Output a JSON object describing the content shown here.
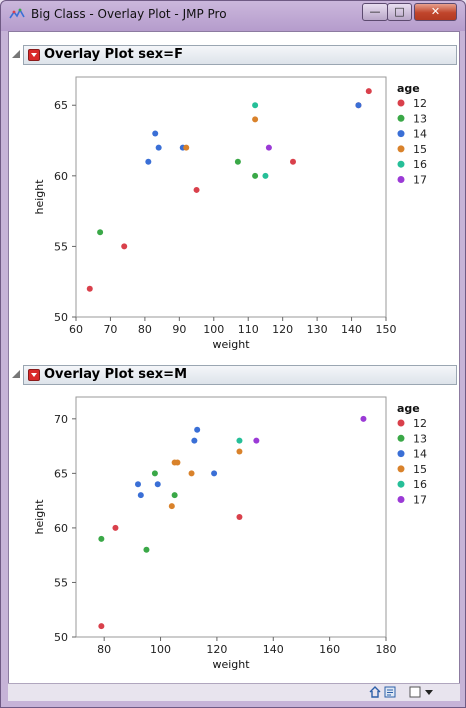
{
  "window": {
    "title": "Big Class - Overlay Plot - JMP Pro",
    "buttons": {
      "minimize": "—",
      "maximize": "□",
      "close": "✕"
    }
  },
  "legend_title": "age",
  "colors": {
    "12": "#d9404b",
    "13": "#3aa847",
    "14": "#3a6fd6",
    "15": "#d9822b",
    "16": "#26bf98",
    "17": "#9b3ad6"
  },
  "chart_data": [
    {
      "type": "scatter",
      "title": "Overlay Plot sex=F",
      "xlabel": "weight",
      "ylabel": "height",
      "xlim": [
        60,
        150
      ],
      "ylim": [
        50,
        67
      ],
      "xticks": [
        60,
        70,
        80,
        90,
        100,
        110,
        120,
        130,
        140,
        150
      ],
      "yticks": [
        50,
        55,
        60,
        65
      ],
      "legend": {
        "title": "age",
        "placement": "right",
        "entries": [
          "12",
          "13",
          "14",
          "15",
          "16",
          "17"
        ]
      },
      "series": [
        {
          "name": "12",
          "points": [
            [
              64,
              52
            ],
            [
              74,
              55
            ],
            [
              95,
              59
            ],
            [
              123,
              61
            ],
            [
              142,
              65
            ],
            [
              145,
              66
            ]
          ]
        },
        {
          "name": "13",
          "points": [
            [
              67,
              56
            ],
            [
              107,
              61
            ],
            [
              112,
              60
            ]
          ]
        },
        {
          "name": "14",
          "points": [
            [
              81,
              61
            ],
            [
              83,
              63
            ],
            [
              84,
              62
            ],
            [
              91,
              62
            ],
            [
              142,
              65
            ]
          ]
        },
        {
          "name": "15",
          "points": [
            [
              92,
              62
            ],
            [
              112,
              64
            ]
          ]
        },
        {
          "name": "16",
          "points": [
            [
              112,
              65
            ],
            [
              115,
              60
            ]
          ]
        },
        {
          "name": "17",
          "points": [
            [
              116,
              62
            ]
          ]
        }
      ]
    },
    {
      "type": "scatter",
      "title": "Overlay Plot sex=M",
      "xlabel": "weight",
      "ylabel": "height",
      "xlim": [
        70,
        180
      ],
      "ylim": [
        50,
        72
      ],
      "xticks": [
        80,
        100,
        120,
        140,
        160,
        180
      ],
      "yticks": [
        50,
        55,
        60,
        65,
        70
      ],
      "legend": {
        "title": "age",
        "placement": "right",
        "entries": [
          "12",
          "13",
          "14",
          "15",
          "16",
          "17"
        ]
      },
      "series": [
        {
          "name": "12",
          "points": [
            [
              79,
              51
            ],
            [
              84,
              60
            ],
            [
              128,
              61
            ]
          ]
        },
        {
          "name": "13",
          "points": [
            [
              79,
              59
            ],
            [
              95,
              58
            ],
            [
              98,
              65
            ],
            [
              105,
              63
            ]
          ]
        },
        {
          "name": "14",
          "points": [
            [
              92,
              64
            ],
            [
              93,
              63
            ],
            [
              99,
              64
            ],
            [
              112,
              68
            ],
            [
              113,
              69
            ],
            [
              119,
              65
            ]
          ]
        },
        {
          "name": "15",
          "points": [
            [
              104,
              62
            ],
            [
              105,
              66
            ],
            [
              106,
              66
            ],
            [
              111,
              65
            ],
            [
              128,
              67
            ]
          ]
        },
        {
          "name": "16",
          "points": [
            [
              128,
              68
            ]
          ]
        },
        {
          "name": "17",
          "points": [
            [
              134,
              68
            ],
            [
              172,
              70
            ]
          ]
        }
      ]
    }
  ]
}
